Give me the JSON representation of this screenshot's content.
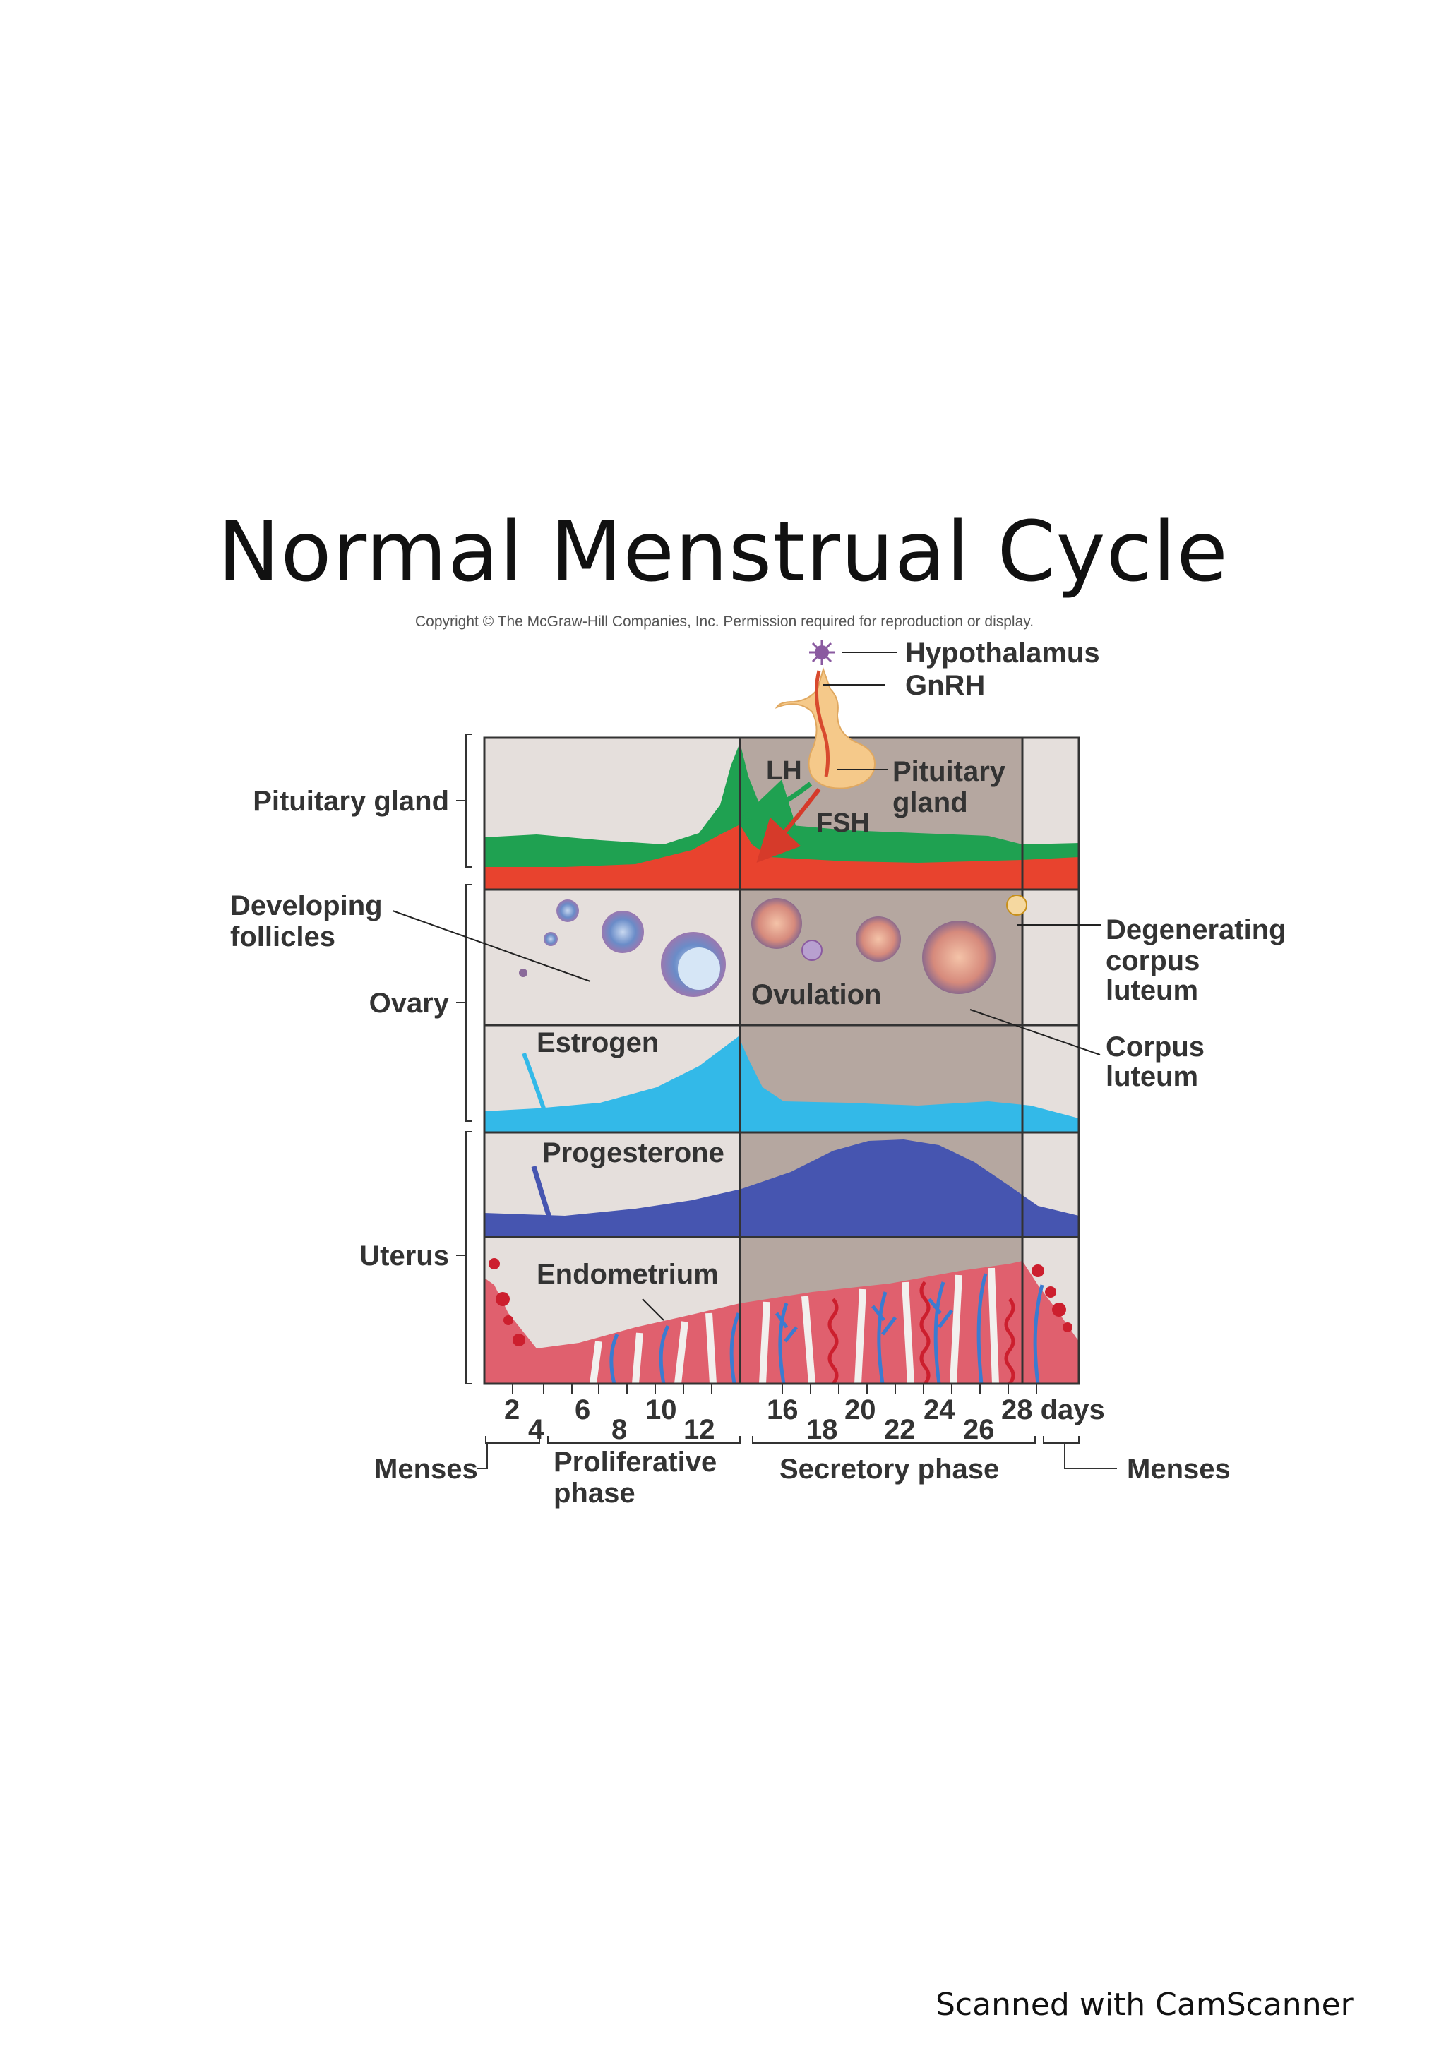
{
  "page_title": "Normal Menstrual Cycle",
  "copyright": "Copyright © The McGraw-Hill Companies, Inc. Permission required for reproduction or display.",
  "footer": "Scanned with CamScanner",
  "labels": {
    "hypothalamus": "Hypothalamus",
    "gnrh": "GnRH",
    "lh": "LH",
    "fsh": "FSH",
    "pituitary_gland_callout": [
      "Pituitary",
      "gland"
    ],
    "pituitary_gland_row": "Pituitary gland",
    "developing_follicles": [
      "Developing",
      "follicles"
    ],
    "ovary": "Ovary",
    "ovulation": "Ovulation",
    "degenerating_corpus_luteum": [
      "Degenerating",
      "corpus",
      "luteum"
    ],
    "corpus_luteum": [
      "Corpus",
      "luteum"
    ],
    "estrogen": "Estrogen",
    "progesterone": "Progesterone",
    "uterus": "Uterus",
    "endometrium": "Endometrium"
  },
  "day_axis": {
    "upper_ticks": [
      "2",
      "6",
      "10",
      "16",
      "20",
      "24",
      "28 days"
    ],
    "lower_ticks": [
      "4",
      "8",
      "12",
      "18",
      "22",
      "26"
    ]
  },
  "phases": {
    "menses_start": "Menses",
    "proliferative": [
      "Proliferative",
      "phase"
    ],
    "secretory": "Secretory phase",
    "menses_end": "Menses"
  },
  "colors": {
    "panel_light": "#e5dfdc",
    "panel_dark": "#b5a7a0",
    "lh_green": "#1fa151",
    "fsh_red": "#e8432e",
    "estrogen_blue": "#33b9e8",
    "progesterone_blue": "#4655b0",
    "endometrium_pink": "#e0606e",
    "vessel_blue": "#3b7bd0",
    "blood_red": "#cc1f2e",
    "pituitary_tan": "#f5c98a",
    "follicle_purple": "#8a6a9a"
  }
}
